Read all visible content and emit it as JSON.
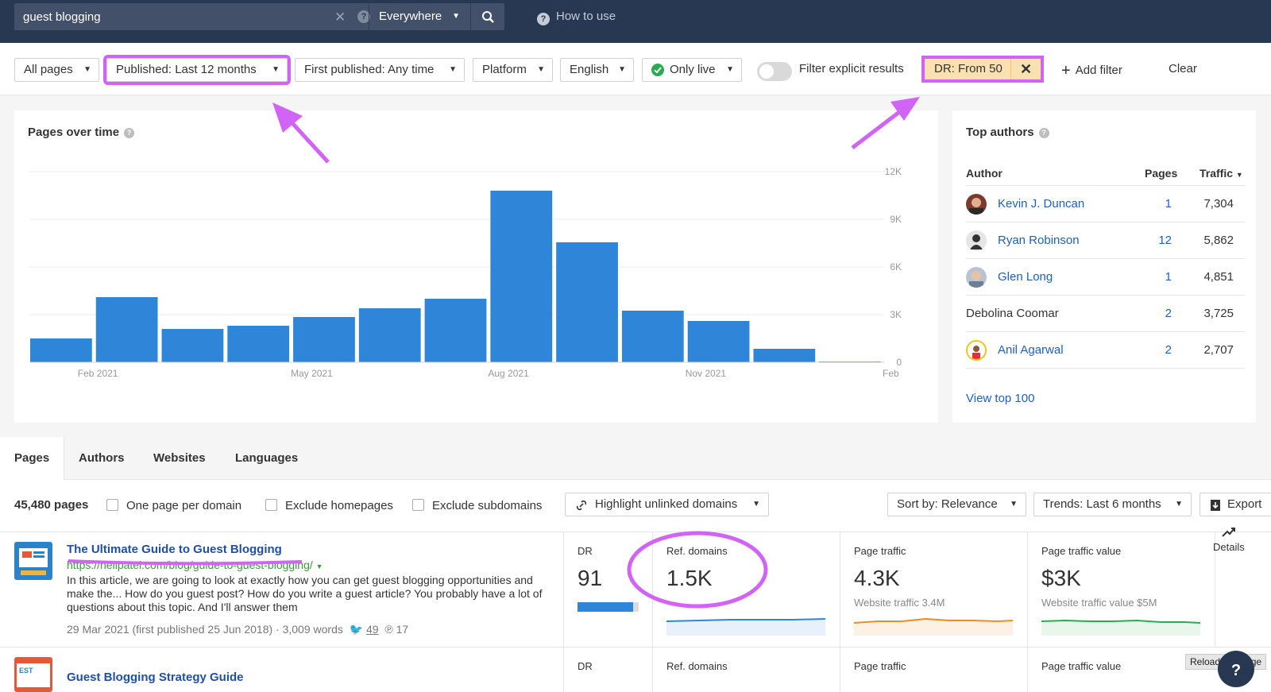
{
  "search": {
    "query": "guest blogging",
    "scope": "Everywhere",
    "how_to_use": "How to use"
  },
  "filters": {
    "all_pages": "All pages",
    "published": "Published: Last 12 months",
    "first_published": "First published: Any time",
    "platform": "Platform",
    "language": "English",
    "only_live": "Only live",
    "filter_explicit": "Filter explicit results",
    "dr_filter": "DR: From 50",
    "add_filter": "Add filter",
    "clear": "Clear"
  },
  "chart": {
    "title": "Pages over time"
  },
  "chart_data": {
    "type": "bar",
    "title": "Pages over time",
    "x_tick_labels": [
      "Feb 2021",
      "May 2021",
      "Aug 2021",
      "Nov 2021",
      "Feb"
    ],
    "y_tick_labels": [
      "12K",
      "9K",
      "6K",
      "3K",
      "0"
    ],
    "categories": [
      "Jan 2021",
      "Feb 2021",
      "Mar 2021",
      "Apr 2021",
      "May 2021",
      "Jun 2021",
      "Jul 2021",
      "Aug 2021",
      "Sep 2021",
      "Oct 2021",
      "Nov 2021",
      "Dec 2021",
      "Jan 2022"
    ],
    "values": [
      1500,
      4100,
      2100,
      2300,
      2850,
      3400,
      4000,
      10800,
      7550,
      3250,
      2600,
      850,
      50
    ],
    "ylim": [
      0,
      12000
    ]
  },
  "top_authors": {
    "title": "Top authors",
    "headers": {
      "author": "Author",
      "pages": "Pages",
      "traffic": "Traffic"
    },
    "rows": [
      {
        "name": "Kevin J. Duncan",
        "pages": "1",
        "traffic": "7,304"
      },
      {
        "name": "Ryan Robinson",
        "pages": "12",
        "traffic": "5,862"
      },
      {
        "name": "Glen Long",
        "pages": "1",
        "traffic": "4,851"
      },
      {
        "name": "Debolina Coomar",
        "pages": "2",
        "traffic": "3,725"
      },
      {
        "name": "Anil Agarwal",
        "pages": "2",
        "traffic": "2,707"
      }
    ],
    "view_top": "View top 100"
  },
  "tabs": [
    "Pages",
    "Authors",
    "Websites",
    "Languages"
  ],
  "results_toolbar": {
    "count": "45,480 pages",
    "one_per_domain": "One page per domain",
    "exclude_homepages": "Exclude homepages",
    "exclude_subdomains": "Exclude subdomains",
    "highlight": "Highlight unlinked domains",
    "sort": "Sort by: Relevance",
    "trends": "Trends: Last 6 months",
    "export": "Export"
  },
  "results": [
    {
      "title": "The Ultimate Guide to Guest Blogging",
      "url": "https://neilpatel.com/blog/guide-to-guest-blogging/",
      "desc": "In this article, we are going to look at exactly how you can get guest blogging opportunities and make the... How do you guest post? How do you write a guest article? You probably have a lot of questions about this topic. And I'll answer them",
      "meta": "29 Mar 2021 (first published 25 Jun 2018) · 3,009 words",
      "tweets": "49",
      "pins": "17",
      "dr_label": "DR",
      "dr": "91",
      "dr_fill": 0.91,
      "ref_label": "Ref. domains",
      "ref": "1.5K",
      "traffic_label": "Page traffic",
      "traffic": "4.3K",
      "website_traffic": "Website traffic 3.4M",
      "value_label": "Page traffic value",
      "value": "$3K",
      "website_value": "Website traffic value $5M",
      "details": "Details"
    },
    {
      "title": "Guest Blogging Strategy Guide",
      "dr_label": "DR",
      "ref_label": "Ref. domains",
      "traffic_label": "Page traffic",
      "value_label": "Page traffic value"
    }
  ],
  "tooltip": "Reload this page",
  "colors": {
    "topbar": "#283752",
    "bar": "#2f86d9",
    "highlight": "#d163f7",
    "link": "#1f5fbf"
  }
}
